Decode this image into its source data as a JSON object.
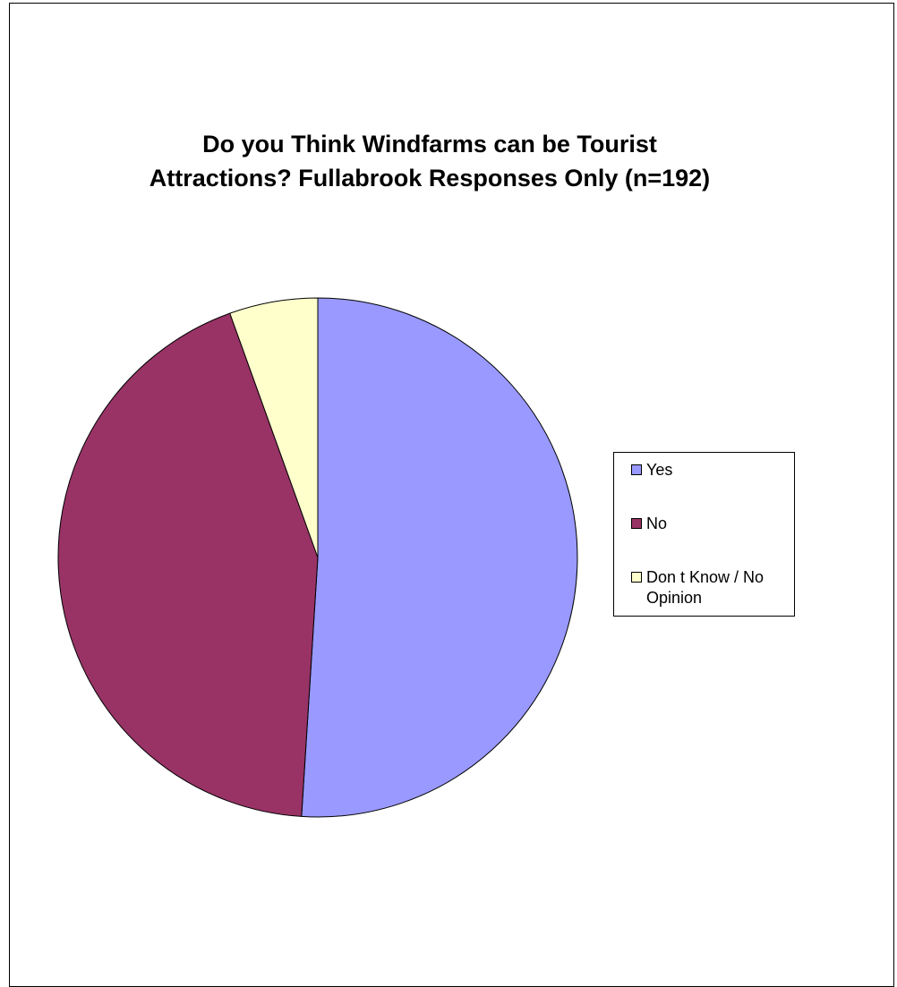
{
  "chart_data": {
    "type": "pie",
    "title_lines": [
      "Do you Think Windfarms can be Tourist",
      "Attractions? Fullabrook Responses Only (n=192)"
    ],
    "categories": [
      "Yes",
      "No",
      "Don t Know / No Opinion"
    ],
    "values": [
      51,
      43.5,
      5.5
    ],
    "colors": [
      "#9999ff",
      "#993366",
      "#ffffcc"
    ],
    "start_angle_deg": 0,
    "direction": "clockwise",
    "legend_position": "right",
    "legend": {
      "items": [
        {
          "label": "Yes",
          "color": "#9999ff"
        },
        {
          "label": "No",
          "color": "#993366"
        },
        {
          "label": "Don t Know / No Opinion",
          "color": "#ffffcc"
        }
      ]
    }
  }
}
